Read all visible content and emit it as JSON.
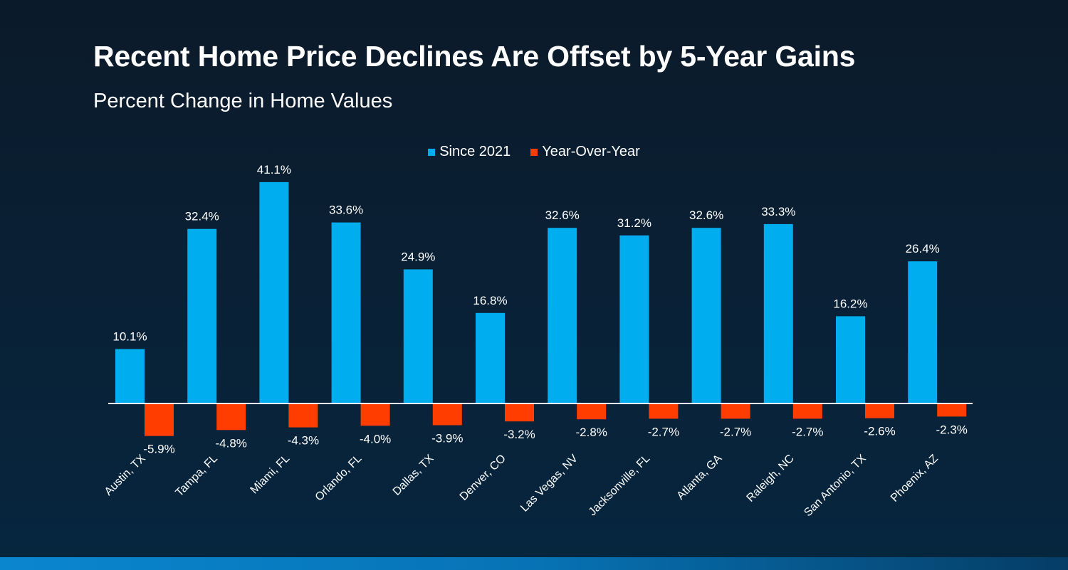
{
  "header": {
    "title": "Recent Home Price Declines Are Offset by 5-Year Gains",
    "subtitle": "Percent Change in Home Values"
  },
  "colors": {
    "since_2021": "#00adef",
    "year_over_year": "#ff3d00",
    "axis": "#ffffff"
  },
  "chart_data": {
    "type": "bar",
    "title": "Recent Home Price Declines Are Offset by 5-Year Gains",
    "subtitle": "Percent Change in Home Values",
    "xlabel": "",
    "ylabel": "",
    "ylim": [
      -10,
      45
    ],
    "grid": false,
    "legend_position": "top-center",
    "value_format": "percent_one_decimal",
    "categories": [
      "Austin, TX",
      "Tampa, FL",
      "Miami, FL",
      "Orlando, FL",
      "Dallas, TX",
      "Denver, CO",
      "Las Vegas, NV",
      "Jacksonville, FL",
      "Atlanta, GA",
      "Raleigh, NC",
      "San Antonio, TX",
      "Phoenix, AZ"
    ],
    "series": [
      {
        "name": "Since 2021",
        "color": "#00adef",
        "values": [
          10.1,
          32.4,
          41.1,
          33.6,
          24.9,
          16.8,
          32.6,
          31.2,
          32.6,
          33.3,
          16.2,
          26.4
        ],
        "labels": [
          "10.1%",
          "32.4%",
          "41.1%",
          "33.6%",
          "24.9%",
          "16.8%",
          "32.6%",
          "31.2%",
          "32.6%",
          "33.3%",
          "16.2%",
          "26.4%"
        ]
      },
      {
        "name": "Year-Over-Year",
        "color": "#ff3d00",
        "values": [
          -5.9,
          -4.8,
          -4.3,
          -4.0,
          -3.9,
          -3.2,
          -2.8,
          -2.7,
          -2.7,
          -2.7,
          -2.6,
          -2.3
        ],
        "labels": [
          "-5.9%",
          "-4.8%",
          "-4.3%",
          "-4.0%",
          "-3.9%",
          "-3.2%",
          "-2.8%",
          "-2.7%",
          "-2.7%",
          "-2.7%",
          "-2.6%",
          "-2.3%"
        ]
      }
    ]
  }
}
